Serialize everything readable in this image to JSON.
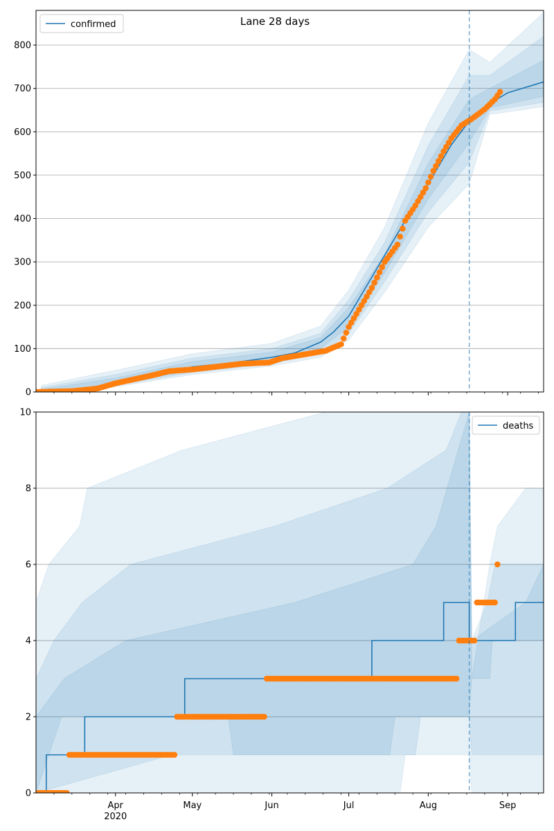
{
  "chart_data": [
    {
      "type": "line",
      "title": "Lane 28 days",
      "xlabel": "",
      "ylabel": "",
      "ylim": [
        0,
        880
      ],
      "yticks": [
        0,
        100,
        200,
        300,
        400,
        500,
        600,
        700,
        800
      ],
      "grid": "horizontal",
      "legend": {
        "placement": "top-left",
        "entries": [
          "confirmed"
        ]
      },
      "forecast_start": "2020-08-17",
      "series": [
        {
          "name": "confirmed",
          "kind": "model-median",
          "points": [
            [
              "2020-03-03",
              0
            ],
            [
              "2020-03-10",
              2
            ],
            [
              "2020-03-20",
              8
            ],
            [
              "2020-03-31",
              20
            ],
            [
              "2020-04-15",
              35
            ],
            [
              "2020-05-01",
              58
            ],
            [
              "2020-05-15",
              66
            ],
            [
              "2020-06-01",
              80
            ],
            [
              "2020-06-10",
              90
            ],
            [
              "2020-06-20",
              115
            ],
            [
              "2020-06-25",
              138
            ],
            [
              "2020-07-01",
              175
            ],
            [
              "2020-07-10",
              265
            ],
            [
              "2020-07-20",
              365
            ],
            [
              "2020-07-25",
              415
            ],
            [
              "2020-08-01",
              480
            ],
            [
              "2020-08-10",
              570
            ],
            [
              "2020-08-17",
              625
            ],
            [
              "2020-08-25",
              665
            ],
            [
              "2020-09-01",
              690
            ],
            [
              "2020-09-15",
              715
            ]
          ],
          "bands": [
            {
              "lower": [
                [
                  "2020-03-03",
                  0
                ],
                [
                  "2020-04-01",
                  12
                ],
                [
                  "2020-05-01",
                  40
                ],
                [
                  "2020-06-01",
                  60
                ],
                [
                  "2020-06-20",
                  80
                ],
                [
                  "2020-07-01",
                  120
                ],
                [
                  "2020-07-15",
                  230
                ],
                [
                  "2020-08-01",
                  380
                ],
                [
                  "2020-08-17",
                  480
                ],
                [
                  "2020-08-25",
                  640
                ],
                [
                  "2020-09-15",
                  658
                ]
              ],
              "upper": [
                [
                  "2020-03-03",
                  15
                ],
                [
                  "2020-04-01",
                  50
                ],
                [
                  "2020-05-01",
                  88
                ],
                [
                  "2020-06-01",
                  112
                ],
                [
                  "2020-06-20",
                  152
                ],
                [
                  "2020-07-01",
                  235
                ],
                [
                  "2020-07-15",
                  380
                ],
                [
                  "2020-08-01",
                  620
                ],
                [
                  "2020-08-17",
                  790
                ],
                [
                  "2020-08-25",
                  760
                ],
                [
                  "2020-09-15",
                  875
                ]
              ]
            },
            {
              "lower": [
                [
                  "2020-03-03",
                  0
                ],
                [
                  "2020-04-01",
                  15
                ],
                [
                  "2020-05-01",
                  45
                ],
                [
                  "2020-06-01",
                  65
                ],
                [
                  "2020-06-20",
                  90
                ],
                [
                  "2020-07-01",
                  135
                ],
                [
                  "2020-07-15",
                  255
                ],
                [
                  "2020-08-01",
                  415
                ],
                [
                  "2020-08-17",
                  530
                ],
                [
                  "2020-08-25",
                  648
                ],
                [
                  "2020-09-15",
                  668
                ]
              ],
              "upper": [
                [
                  "2020-03-03",
                  10
                ],
                [
                  "2020-04-01",
                  40
                ],
                [
                  "2020-05-01",
                  78
                ],
                [
                  "2020-06-01",
                  100
                ],
                [
                  "2020-06-20",
                  135
                ],
                [
                  "2020-07-01",
                  212
                ],
                [
                  "2020-07-15",
                  345
                ],
                [
                  "2020-08-01",
                  568
                ],
                [
                  "2020-08-17",
                  730
                ],
                [
                  "2020-08-25",
                  730
                ],
                [
                  "2020-09-15",
                  820
                ]
              ]
            },
            {
              "lower": [
                [
                  "2020-03-03",
                  0
                ],
                [
                  "2020-04-01",
                  17
                ],
                [
                  "2020-05-01",
                  50
                ],
                [
                  "2020-06-01",
                  71
                ],
                [
                  "2020-06-20",
                  100
                ],
                [
                  "2020-07-01",
                  150
                ],
                [
                  "2020-07-15",
                  275
                ],
                [
                  "2020-08-01",
                  445
                ],
                [
                  "2020-08-17",
                  575
                ],
                [
                  "2020-08-25",
                  655
                ],
                [
                  "2020-09-15",
                  682
                ]
              ],
              "upper": [
                [
                  "2020-03-03",
                  6
                ],
                [
                  "2020-04-01",
                  32
                ],
                [
                  "2020-05-01",
                  70
                ],
                [
                  "2020-06-01",
                  92
                ],
                [
                  "2020-06-20",
                  125
                ],
                [
                  "2020-07-01",
                  195
                ],
                [
                  "2020-07-15",
                  318
                ],
                [
                  "2020-08-01",
                  528
                ],
                [
                  "2020-08-17",
                  675
                ],
                [
                  "2020-08-25",
                  700
                ],
                [
                  "2020-09-15",
                  765
                ]
              ]
            }
          ]
        },
        {
          "name": "",
          "kind": "observed",
          "points": [
            [
              "2020-03-01",
              0
            ],
            [
              "2020-03-15",
              2
            ],
            [
              "2020-03-25",
              8
            ],
            [
              "2020-04-01",
              20
            ],
            [
              "2020-04-15",
              38
            ],
            [
              "2020-04-22",
              48
            ],
            [
              "2020-05-01",
              52
            ],
            [
              "2020-05-10",
              58
            ],
            [
              "2020-05-20",
              65
            ],
            [
              "2020-05-31",
              68
            ],
            [
              "2020-06-05",
              78
            ],
            [
              "2020-06-15",
              88
            ],
            [
              "2020-06-22",
              95
            ],
            [
              "2020-06-28",
              110
            ],
            [
              "2020-07-01",
              150
            ],
            [
              "2020-07-05",
              190
            ],
            [
              "2020-07-10",
              240
            ],
            [
              "2020-07-15",
              300
            ],
            [
              "2020-07-20",
              340
            ],
            [
              "2020-07-23",
              395
            ],
            [
              "2020-07-27",
              430
            ],
            [
              "2020-07-31",
              470
            ],
            [
              "2020-08-03",
              510
            ],
            [
              "2020-08-07",
              555
            ],
            [
              "2020-08-10",
              585
            ],
            [
              "2020-08-14",
              615
            ],
            [
              "2020-08-18",
              630
            ],
            [
              "2020-08-23",
              652
            ],
            [
              "2020-08-27",
              675
            ],
            [
              "2020-08-29",
              692
            ]
          ]
        }
      ]
    },
    {
      "type": "line",
      "title": "",
      "xlabel": "",
      "ylabel": "",
      "ylim": [
        0,
        10
      ],
      "yticks": [
        0,
        2,
        4,
        6,
        8,
        10
      ],
      "xticks": [
        {
          "date": "2020-04-01",
          "label": "Apr",
          "sublabel": "2020"
        },
        {
          "date": "2020-05-01",
          "label": "May"
        },
        {
          "date": "2020-06-01",
          "label": "Jun"
        },
        {
          "date": "2020-07-01",
          "label": "Jul"
        },
        {
          "date": "2020-08-01",
          "label": "Aug"
        },
        {
          "date": "2020-09-01",
          "label": "Sep"
        }
      ],
      "grid": "horizontal",
      "legend": {
        "placement": "top-right",
        "entries": [
          "deaths"
        ]
      },
      "forecast_start": "2020-08-17",
      "series": [
        {
          "name": "deaths",
          "kind": "model-median-step",
          "steps": [
            [
              "2020-03-03",
              0
            ],
            [
              "2020-03-05",
              1
            ],
            [
              "2020-03-20",
              2
            ],
            [
              "2020-04-28",
              3
            ],
            [
              "2020-07-10",
              4
            ],
            [
              "2020-08-07",
              5
            ],
            [
              "2020-08-17",
              4
            ],
            [
              "2020-09-04",
              5
            ]
          ],
          "bands": [
            {
              "lower": [
                [
                  "2020-03-01",
                  0
                ],
                [
                  "2020-07-21",
                  0
                ],
                [
                  "2020-07-23",
                  1
                ],
                [
                  "2020-08-17",
                  1
                ],
                [
                  "2020-08-18",
                  0
                ],
                [
                  "2020-09-15",
                  0
                ]
              ],
              "upper": [
                [
                  "2020-03-01",
                  5
                ],
                [
                  "2020-03-06",
                  6
                ],
                [
                  "2020-03-18",
                  7
                ],
                [
                  "2020-03-21",
                  8
                ],
                [
                  "2020-04-27",
                  9
                ],
                [
                  "2020-06-22",
                  10
                ],
                [
                  "2020-08-17",
                  10
                ],
                [
                  "2020-08-18",
                  3
                ],
                [
                  "2020-08-25",
                  6
                ],
                [
                  "2020-08-28",
                  7
                ],
                [
                  "2020-09-08",
                  8
                ],
                [
                  "2020-09-15",
                  8
                ]
              ]
            },
            {
              "lower": [
                [
                  "2020-03-01",
                  0
                ],
                [
                  "2020-04-23",
                  1
                ],
                [
                  "2020-07-27",
                  1
                ],
                [
                  "2020-07-29",
                  2
                ],
                [
                  "2020-08-17",
                  2
                ],
                [
                  "2020-08-18",
                  1
                ],
                [
                  "2020-09-15",
                  1
                ]
              ],
              "upper": [
                [
                  "2020-03-01",
                  3
                ],
                [
                  "2020-03-08",
                  4
                ],
                [
                  "2020-03-19",
                  5
                ],
                [
                  "2020-04-07",
                  6
                ],
                [
                  "2020-06-02",
                  7
                ],
                [
                  "2020-07-16",
                  8
                ],
                [
                  "2020-08-08",
                  9
                ],
                [
                  "2020-08-14",
                  10
                ],
                [
                  "2020-08-17",
                  10
                ],
                [
                  "2020-08-18",
                  4
                ],
                [
                  "2020-08-24",
                  5
                ],
                [
                  "2020-08-27",
                  6
                ],
                [
                  "2020-09-13",
                  6
                ],
                [
                  "2020-09-15",
                  6
                ]
              ]
            },
            {
              "lower": [
                [
                  "2020-03-01",
                  0
                ],
                [
                  "2020-03-11",
                  2
                ],
                [
                  "2020-05-15",
                  2
                ],
                [
                  "2020-05-17",
                  1
                ],
                [
                  "2020-07-17",
                  1
                ],
                [
                  "2020-07-19",
                  2
                ],
                [
                  "2020-08-17",
                  2
                ],
                [
                  "2020-08-18",
                  3
                ],
                [
                  "2020-08-25",
                  3
                ],
                [
                  "2020-08-26",
                  4
                ],
                [
                  "2020-09-15",
                  4
                ]
              ],
              "upper": [
                [
                  "2020-03-01",
                  2
                ],
                [
                  "2020-03-12",
                  3
                ],
                [
                  "2020-04-05",
                  4
                ],
                [
                  "2020-06-10",
                  5
                ],
                [
                  "2020-07-26",
                  6
                ],
                [
                  "2020-08-04",
                  7
                ],
                [
                  "2020-08-17",
                  10
                ],
                [
                  "2020-08-18",
                  4
                ],
                [
                  "2020-09-08",
                  5
                ],
                [
                  "2020-09-15",
                  6
                ]
              ]
            }
          ]
        },
        {
          "name": "",
          "kind": "observed",
          "ranges": [
            [
              "2020-03-01",
              "2020-03-13",
              0
            ],
            [
              "2020-03-14",
              "2020-04-24",
              1
            ],
            [
              "2020-04-25",
              "2020-05-29",
              2
            ],
            [
              "2020-05-30",
              "2020-08-12",
              3
            ],
            [
              "2020-08-13",
              "2020-08-19",
              4
            ],
            [
              "2020-08-20",
              "2020-08-27",
              5
            ],
            [
              "2020-08-28",
              "2020-08-28",
              6
            ]
          ]
        }
      ]
    }
  ],
  "colors": {
    "model": "#1f77b4",
    "observed": "#ff7f0e",
    "band": "#1f77b4",
    "grid": "#b0b0b0"
  }
}
